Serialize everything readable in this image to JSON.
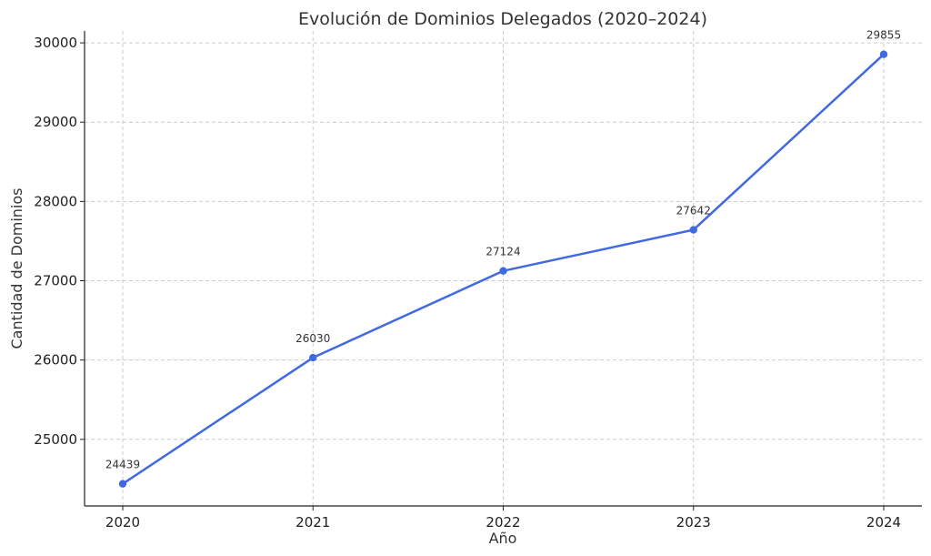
{
  "chart_data": {
    "type": "line",
    "title": "Evolución de Dominios Delegados (2020–2024)",
    "xlabel": "Año",
    "ylabel": "Cantidad de Dominios",
    "categories": [
      "2020",
      "2021",
      "2022",
      "2023",
      "2024"
    ],
    "series": [
      {
        "values": [
          24439,
          26030,
          27124,
          27642,
          29855
        ],
        "color": "#4169e1"
      }
    ],
    "yticks": [
      25000,
      26000,
      27000,
      28000,
      29000,
      30000
    ],
    "ylim": [
      24160,
      30150
    ],
    "grid": true,
    "show_data_labels": true
  }
}
